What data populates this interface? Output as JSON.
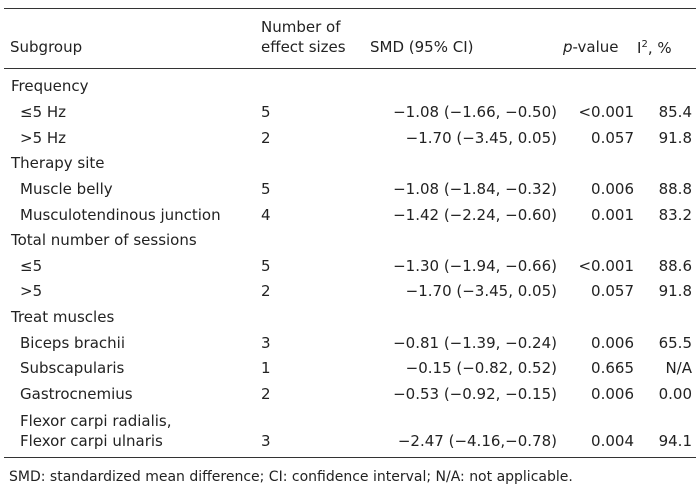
{
  "table": {
    "headers": {
      "subgroup": "Subgroup",
      "n_line1": "Number of",
      "n_line2": "effect sizes",
      "smd": "SMD (95% CI)",
      "p_italic": "p",
      "p_rest": "-value",
      "i2_base": "I",
      "i2_sup": "2",
      "i2_rest": ", %"
    },
    "rows": [
      {
        "type": "group",
        "label": "Frequency"
      },
      {
        "type": "item",
        "label": "≤5 Hz",
        "n": "5",
        "smd": "−1.08 (−1.66, −0.50)",
        "p": "<0.001",
        "i2": "85.4"
      },
      {
        "type": "item",
        "label": ">5 Hz",
        "n": "2",
        "smd": "−1.70 (−3.45, 0.05)",
        "p": "0.057",
        "i2": "91.8"
      },
      {
        "type": "group",
        "label": "Therapy site"
      },
      {
        "type": "item",
        "label": "Muscle belly",
        "n": "5",
        "smd": "−1.08 (−1.84, −0.32)",
        "p": "0.006",
        "i2": "88.8"
      },
      {
        "type": "item",
        "label": "Musculotendinous junction",
        "n": "4",
        "smd": "−1.42 (−2.24, −0.60)",
        "p": "0.001",
        "i2": "83.2"
      },
      {
        "type": "group",
        "label": "Total number of sessions"
      },
      {
        "type": "item",
        "label": "≤5",
        "n": "5",
        "smd": "−1.30 (−1.94, −0.66)",
        "p": "<0.001",
        "i2": "88.6"
      },
      {
        "type": "item",
        "label": ">5",
        "n": "2",
        "smd": "−1.70 (−3.45, 0.05)",
        "p": "0.057",
        "i2": "91.8"
      },
      {
        "type": "group",
        "label": "Treat muscles"
      },
      {
        "type": "item",
        "label": "Biceps brachii",
        "n": "3",
        "smd": "−0.81 (−1.39, −0.24)",
        "p": "0.006",
        "i2": "65.5"
      },
      {
        "type": "item",
        "label": "Subscapularis",
        "n": "1",
        "smd": "−0.15 (−0.82, 0.52)",
        "p": "0.665",
        "i2": "N/A"
      },
      {
        "type": "item",
        "label": "Gastrocnemius",
        "n": "2",
        "smd": "−0.53 (−0.92, −0.15)",
        "p": "0.006",
        "i2": "0.00"
      },
      {
        "type": "item2",
        "label1": "Flexor carpi radialis,",
        "label2": "Flexor carpi ulnaris",
        "n": "3",
        "smd": "−2.47 (−4.16,−0.78)",
        "p": "0.004",
        "i2": "94.1"
      }
    ],
    "footnote": "SMD: standardized mean difference; CI: confidence interval; N/A: not applicable."
  }
}
